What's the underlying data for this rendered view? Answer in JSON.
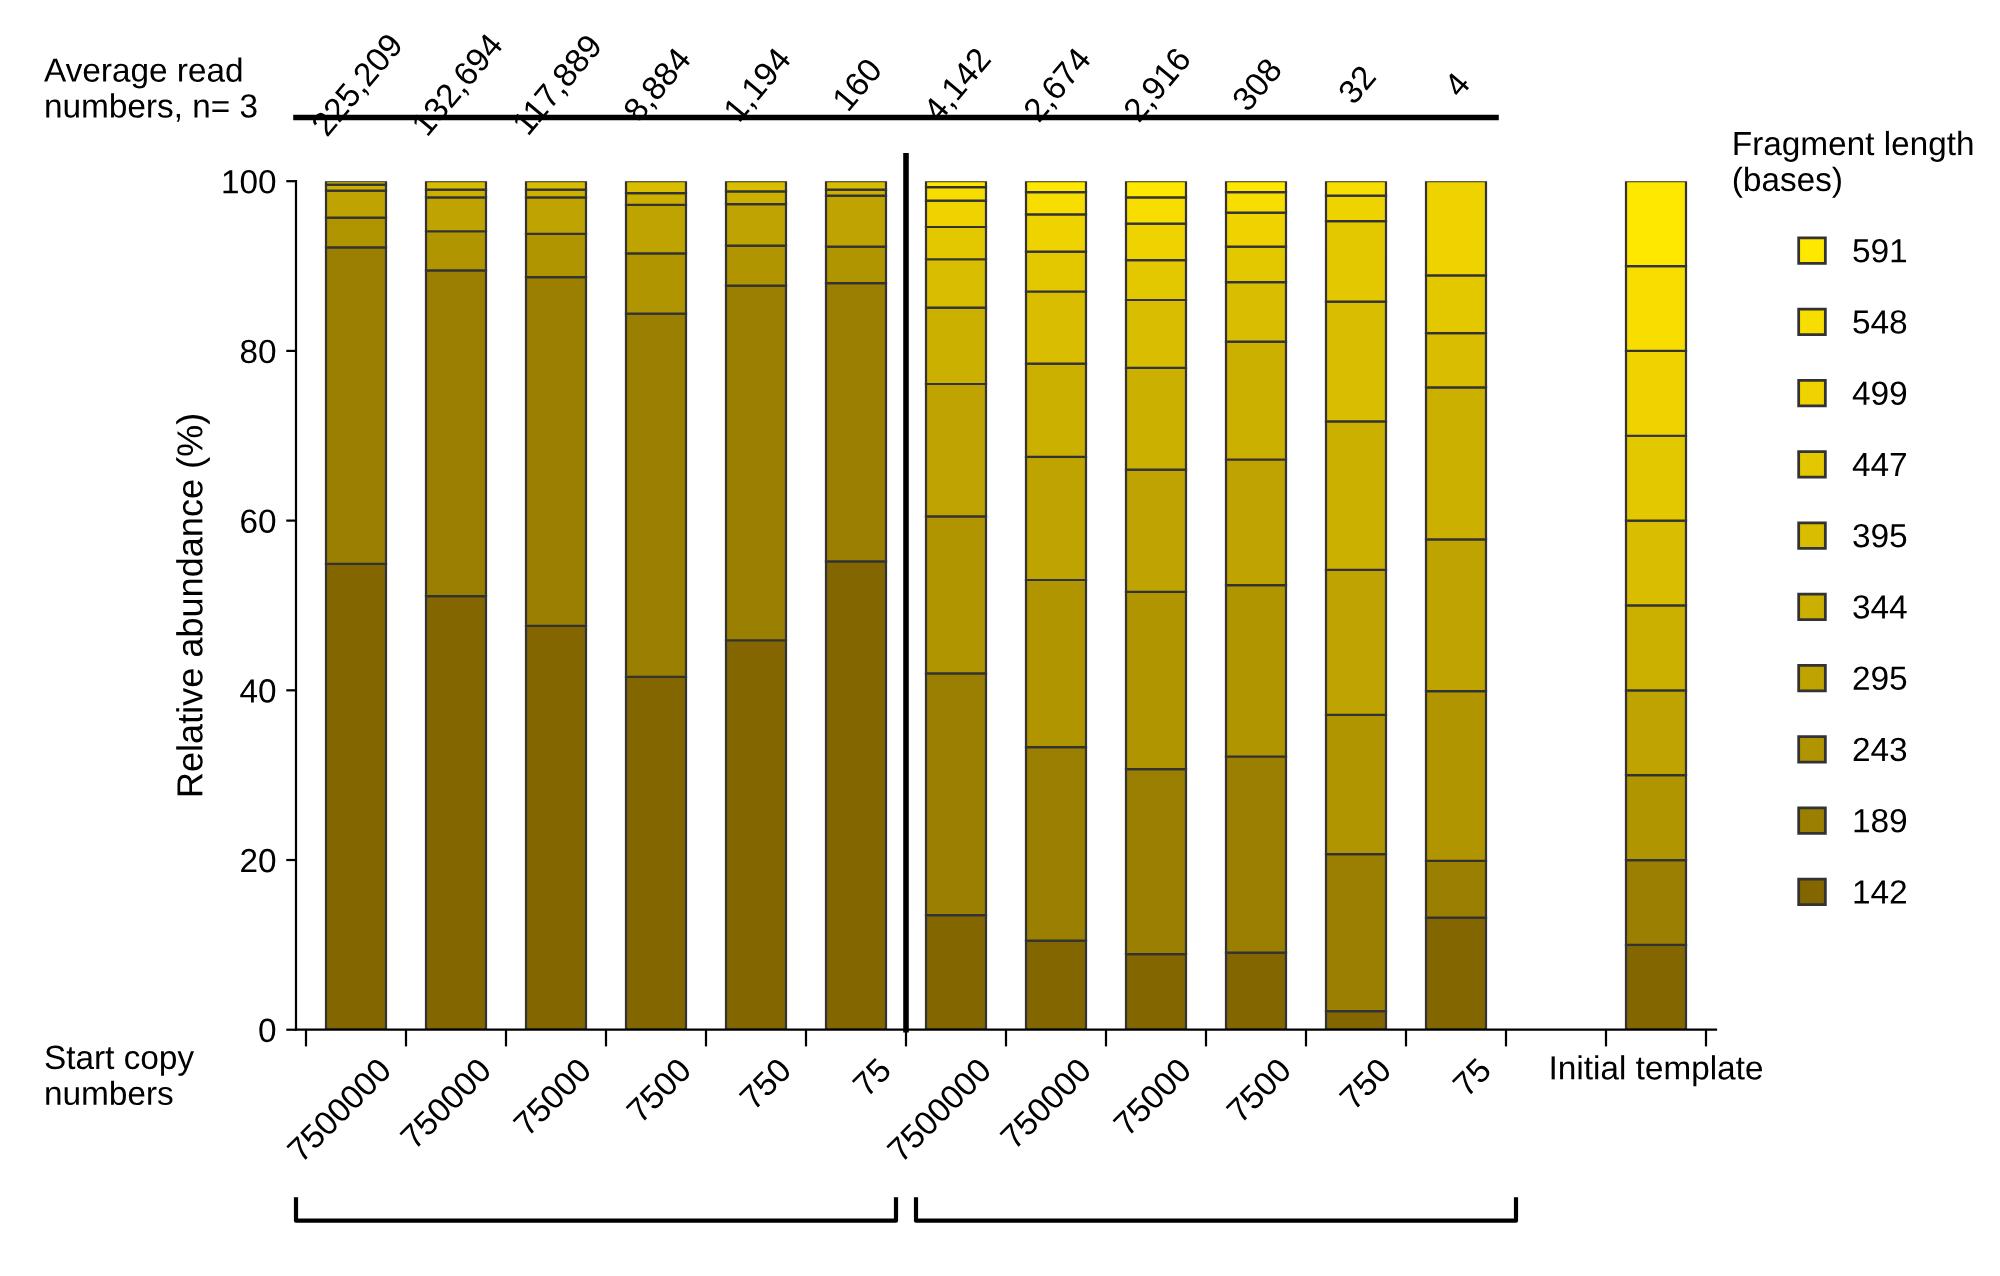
{
  "chart_data": {
    "type": "bar",
    "stacked": true,
    "categories": [
      "7500000",
      "750000",
      "75000",
      "7500",
      "750",
      "75",
      "7500000",
      "750000",
      "75000",
      "7500",
      "750",
      "75",
      null,
      "Initial template"
    ],
    "series": [
      {
        "name": "142",
        "color": "#836600",
        "values": [
          54.9,
          51.1,
          47.6,
          41.6,
          45.9,
          55.2,
          13.5,
          10.5,
          8.9,
          9.1,
          2.2,
          13.2,
          null,
          10
        ]
      },
      {
        "name": "189",
        "color": "#9b7f00",
        "values": [
          37.3,
          38.4,
          41.1,
          42.8,
          41.8,
          32.8,
          28.5,
          22.8,
          21.8,
          23.1,
          18.5,
          6.7,
          null,
          10
        ]
      },
      {
        "name": "243",
        "color": "#b09400",
        "values": [
          3.5,
          4.6,
          5.1,
          7.1,
          4.7,
          4.3,
          18.5,
          19.7,
          20.9,
          20.2,
          16.4,
          20.0,
          null,
          10
        ]
      },
      {
        "name": "295",
        "color": "#bfa300",
        "values": [
          3.2,
          4.0,
          4.3,
          5.7,
          4.9,
          6.0,
          15.6,
          14.5,
          14.4,
          14.8,
          17.1,
          17.9,
          null,
          10
        ]
      },
      {
        "name": "344",
        "color": "#cbb000",
        "values": [
          0.7,
          0.9,
          0.9,
          1.4,
          1.5,
          0.7,
          9.0,
          11.0,
          12.0,
          13.9,
          17.5,
          17.9,
          null,
          10
        ]
      },
      {
        "name": "395",
        "color": "#d8bd00",
        "values": [
          0.4,
          1.0,
          1.0,
          1.4,
          1.2,
          1.0,
          5.7,
          8.5,
          8.0,
          7.0,
          14.1,
          6.4,
          null,
          10
        ]
      },
      {
        "name": "447",
        "color": "#e3c800",
        "values": [
          null,
          null,
          null,
          null,
          null,
          null,
          3.8,
          4.7,
          4.7,
          4.2,
          9.5,
          6.8,
          null,
          10
        ]
      },
      {
        "name": "499",
        "color": "#efd300",
        "values": [
          null,
          null,
          null,
          null,
          null,
          null,
          3.1,
          4.4,
          4.3,
          4.0,
          3.0,
          11.1,
          null,
          10
        ]
      },
      {
        "name": "548",
        "color": "#f8de00",
        "values": [
          null,
          null,
          null,
          null,
          null,
          null,
          1.6,
          2.6,
          3.1,
          2.4,
          1.7,
          null,
          null,
          10
        ]
      },
      {
        "name": "591",
        "color": "#ffe800",
        "values": [
          null,
          null,
          null,
          null,
          null,
          null,
          0.7,
          1.3,
          1.9,
          1.3,
          null,
          null,
          null,
          10
        ]
      }
    ],
    "ylim": [
      0,
      100
    ],
    "yticks": [
      0,
      20,
      40,
      60,
      80,
      100
    ],
    "ylabel": "Relative abundance (%)",
    "xlabel": "Start copy\nnumbers",
    "legend": "right",
    "legend_title": "Fragment length\n(bases)",
    "annotations": [
      "Average read\nnumbers, n= 3",
      "225,209",
      "132,694",
      "117,889",
      "8,884",
      "1,194",
      "160",
      "4,142",
      "2,674",
      "2,916",
      "308",
      "32",
      "4"
    ]
  }
}
